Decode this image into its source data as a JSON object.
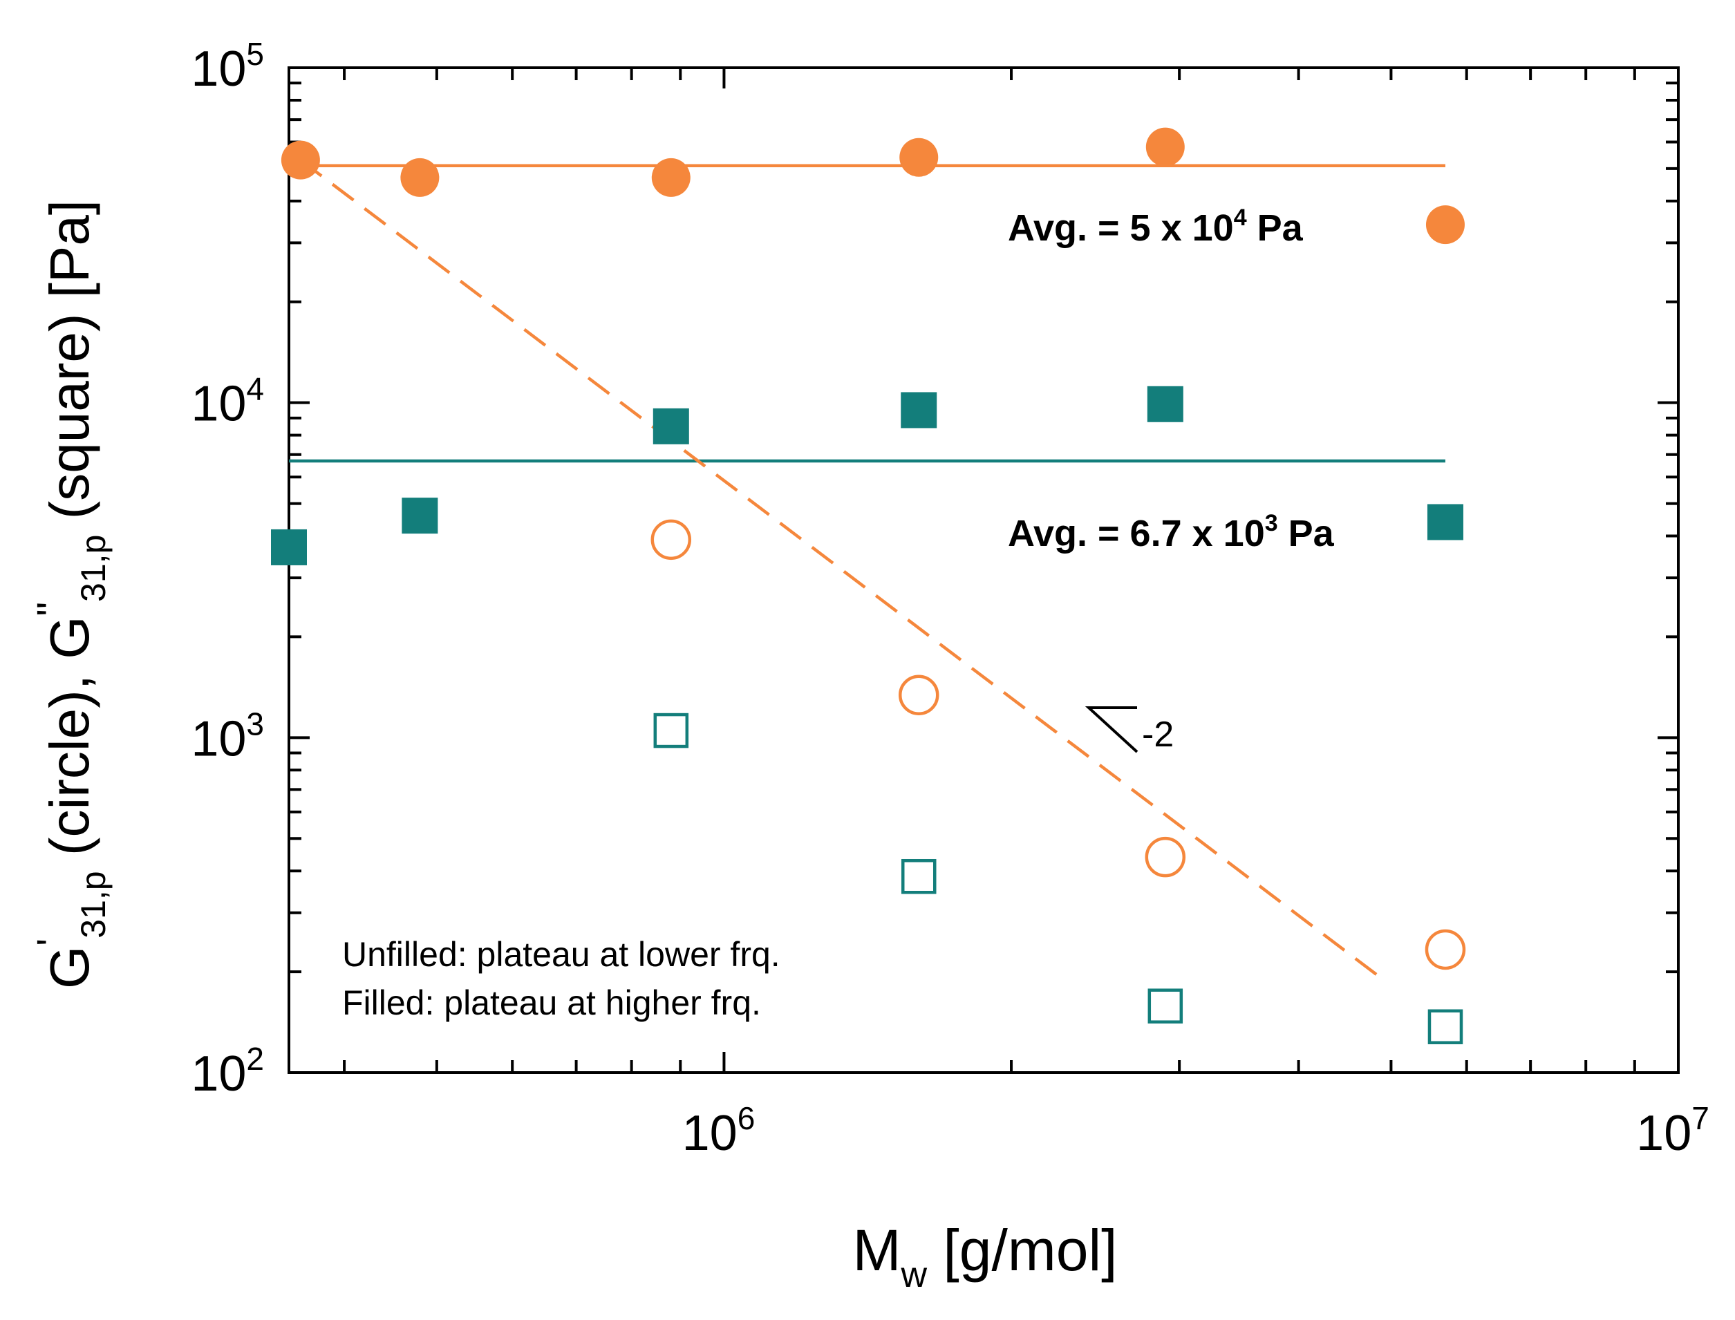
{
  "chart_data": {
    "type": "scatter",
    "x_scale": "log",
    "y_scale": "log",
    "xlim": [
      350000,
      10000000
    ],
    "ylim": [
      100,
      100000
    ],
    "xlabel": {
      "main": "M",
      "sub": "w",
      "rest": " [g/mol]"
    },
    "ylabel": {
      "p1": "G",
      "prime1": "'",
      "sub1": "31,p",
      "text1": " (circle), ",
      "p2": "G",
      "prime2": "\"",
      "sub2": "31,p",
      "text2": " (square) [Pa]"
    },
    "x_ticks": [
      {
        "value": 1000000,
        "base": "10",
        "exp": "6"
      },
      {
        "value": 10000000,
        "base": "10",
        "exp": "7"
      }
    ],
    "y_ticks": [
      {
        "value": 100,
        "base": "10",
        "exp": "2"
      },
      {
        "value": 1000,
        "base": "10",
        "exp": "3"
      },
      {
        "value": 10000,
        "base": "10",
        "exp": "4"
      },
      {
        "value": 100000,
        "base": "10",
        "exp": "5"
      }
    ],
    "colors": {
      "orange": "#f5873c",
      "teal": "#137e7b",
      "axis": "#000000"
    },
    "series": [
      {
        "name": "G' filled (circle)",
        "marker": "circle",
        "filled": true,
        "color": "#f5873c",
        "x": [
          360000,
          480000,
          880000,
          1600000,
          2900000,
          5700000
        ],
        "y": [
          53000,
          47000,
          47000,
          54000,
          58000,
          34000
        ]
      },
      {
        "name": "G'' filled (square)",
        "marker": "square",
        "filled": true,
        "color": "#137e7b",
        "x": [
          350000,
          480000,
          880000,
          1600000,
          2900000,
          5700000
        ],
        "y": [
          3700,
          4600,
          8500,
          9500,
          9900,
          4400
        ]
      },
      {
        "name": "G' unfilled (circle)",
        "marker": "circle",
        "filled": false,
        "color": "#f5873c",
        "x": [
          880000,
          1600000,
          2900000,
          5700000
        ],
        "y": [
          3900,
          1340,
          440,
          233
        ]
      },
      {
        "name": "G'' unfilled (square)",
        "marker": "square",
        "filled": false,
        "color": "#137e7b",
        "x": [
          880000,
          1600000,
          2900000,
          5700000
        ],
        "y": [
          1050,
          385,
          158,
          137
        ]
      }
    ],
    "reference_lines": [
      {
        "name": "orange-average-line",
        "style": "solid",
        "color": "#f5873c",
        "x": [
          360000,
          5700000
        ],
        "y": [
          51000,
          51000
        ]
      },
      {
        "name": "teal-average-line",
        "style": "solid",
        "color": "#137e7b",
        "x": [
          350000,
          5700000
        ],
        "y": [
          6700,
          6700
        ]
      },
      {
        "name": "slope-fit-dashed-line",
        "style": "dashed",
        "color": "#f5873c",
        "x": [
          360000,
          4900000
        ],
        "y": [
          53000,
          190
        ]
      }
    ],
    "annotations": {
      "orange_avg": {
        "prefix": "Avg. = 5 x 10",
        "exp": "4",
        "suffix": " Pa",
        "color": "#f5873c"
      },
      "teal_avg": {
        "prefix": "Avg. = 6.7 x 10",
        "exp": "3",
        "suffix": " Pa",
        "color": "#137e7b"
      },
      "slope_label": "-2",
      "legend_line1": "Unfilled: plateau at lower frq.",
      "legend_line2": "Filled: plateau at higher frq."
    }
  }
}
